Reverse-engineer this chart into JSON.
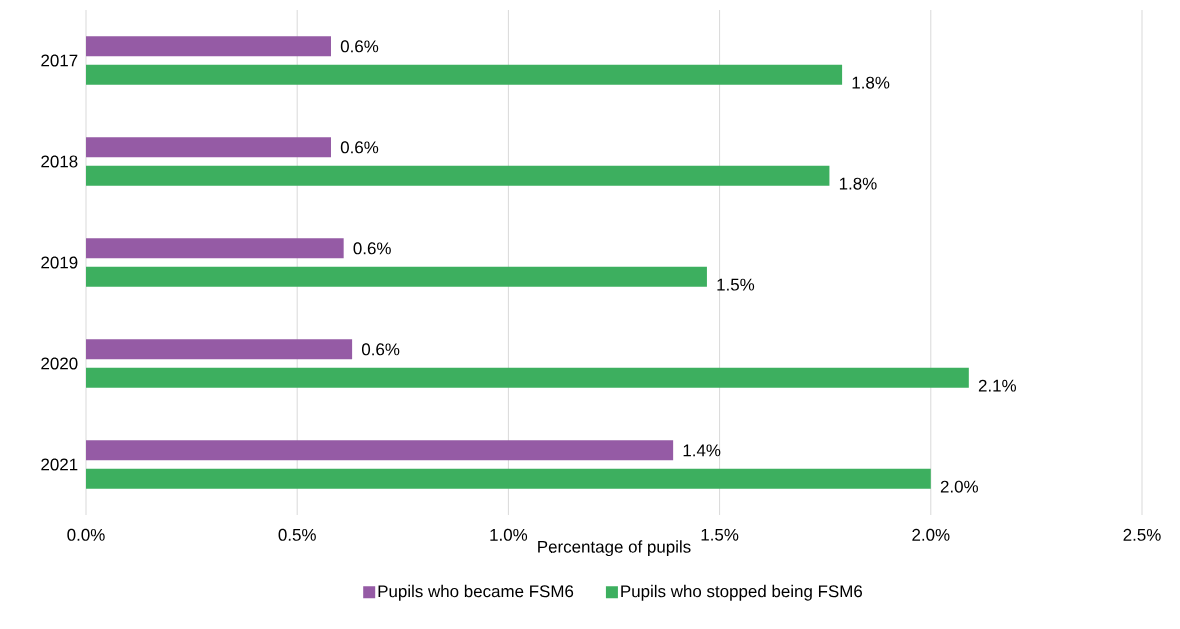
{
  "chart_data": {
    "type": "bar",
    "orientation": "horizontal",
    "xlabel": "Percentage of pupils",
    "categories": [
      "2017",
      "2018",
      "2019",
      "2020",
      "2021"
    ],
    "series": [
      {
        "name": "Pupils who became FSM6",
        "color": "#955ba5",
        "values": [
          0.58,
          0.58,
          0.61,
          0.63,
          1.39
        ],
        "value_labels": [
          "0.6%",
          "0.6%",
          "0.6%",
          "0.6%",
          "1.4%"
        ]
      },
      {
        "name": "Pupils who stopped being FSM6",
        "color": "#3daf5f",
        "values": [
          1.79,
          1.76,
          1.47,
          2.09,
          2.0
        ],
        "value_labels": [
          "1.8%",
          "1.8%",
          "1.5%",
          "2.1%",
          "2.0%"
        ]
      }
    ],
    "xlim": [
      0,
      2.5
    ],
    "xticks": [
      {
        "value": 0,
        "label": "0.0%"
      },
      {
        "value": 0.5,
        "label": "0.5%"
      },
      {
        "value": 1.0,
        "label": "1.0%"
      },
      {
        "value": 1.5,
        "label": "1.5%"
      },
      {
        "value": 2.0,
        "label": "2.0%"
      },
      {
        "value": 2.5,
        "label": "2.5%"
      }
    ],
    "grid": "x",
    "legend": "bottom"
  }
}
